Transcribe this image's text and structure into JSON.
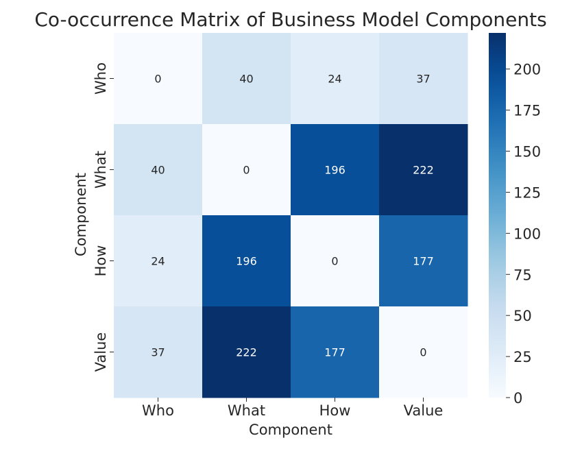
{
  "chart_data": {
    "type": "heatmap",
    "title": "Co-occurrence Matrix of Business Model Components",
    "xlabel": "Component",
    "ylabel": "Component",
    "x_categories": [
      "Who",
      "What",
      "How",
      "Value"
    ],
    "y_categories": [
      "Who",
      "What",
      "How",
      "Value"
    ],
    "values": [
      [
        0,
        40,
        24,
        37
      ],
      [
        40,
        0,
        196,
        222
      ],
      [
        24,
        196,
        0,
        177
      ],
      [
        37,
        222,
        177,
        0
      ]
    ],
    "annotations": true,
    "colormap": "Blues",
    "vmin": 0,
    "vmax": 222,
    "colorbar_ticks": [
      0,
      25,
      50,
      75,
      100,
      125,
      150,
      175,
      200
    ],
    "colorbar_tick_labels": [
      "0",
      "25",
      "50",
      "75",
      "100",
      "125",
      "150",
      "175",
      "200"
    ]
  }
}
